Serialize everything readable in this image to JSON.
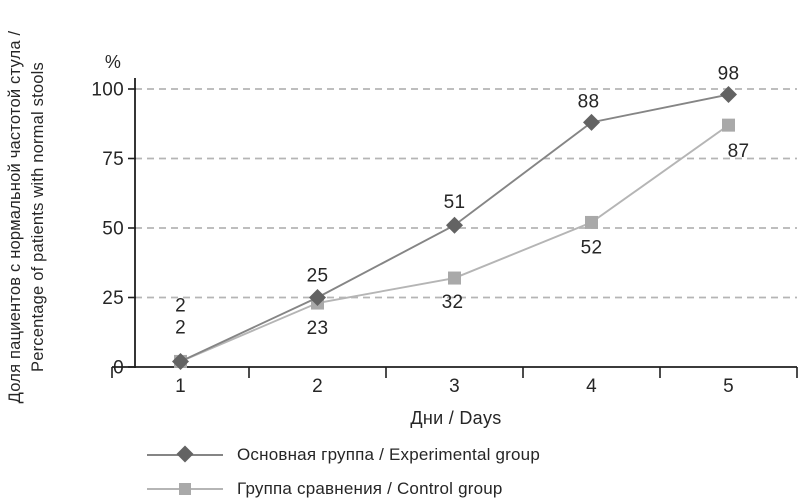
{
  "chart_data": {
    "type": "line",
    "categories": [
      "1",
      "2",
      "3",
      "4",
      "5"
    ],
    "series": [
      {
        "name": "Основная группа / Experimental group",
        "values": [
          2,
          25,
          51,
          88,
          98
        ],
        "marker": "diamond",
        "line_color": "#858585",
        "marker_color": "#636363",
        "label_position": "above"
      },
      {
        "name": "Группа сравнения / Control group",
        "values": [
          2,
          23,
          32,
          52,
          87
        ],
        "marker": "square",
        "line_color": "#b5b5b5",
        "marker_color": "#a9a9a9",
        "label_position": "below"
      }
    ],
    "title": "",
    "xlabel": "Дни / Days",
    "ylabel_line1": "Доля пациентов с нормальной частотой стула /",
    "ylabel_line2": "Percentage of patients with normal stools",
    "y_unit_label": "%",
    "yticks": [
      0,
      25,
      50,
      75,
      100
    ],
    "ylim": [
      0,
      100
    ],
    "grid": "horizontal dashed lines at each y tick",
    "legend_position": "bottom-left"
  },
  "colors": {
    "text": "#262626",
    "axis": "#1f1f1f",
    "grid": "#b5b5b5",
    "background": "#ffffff"
  }
}
